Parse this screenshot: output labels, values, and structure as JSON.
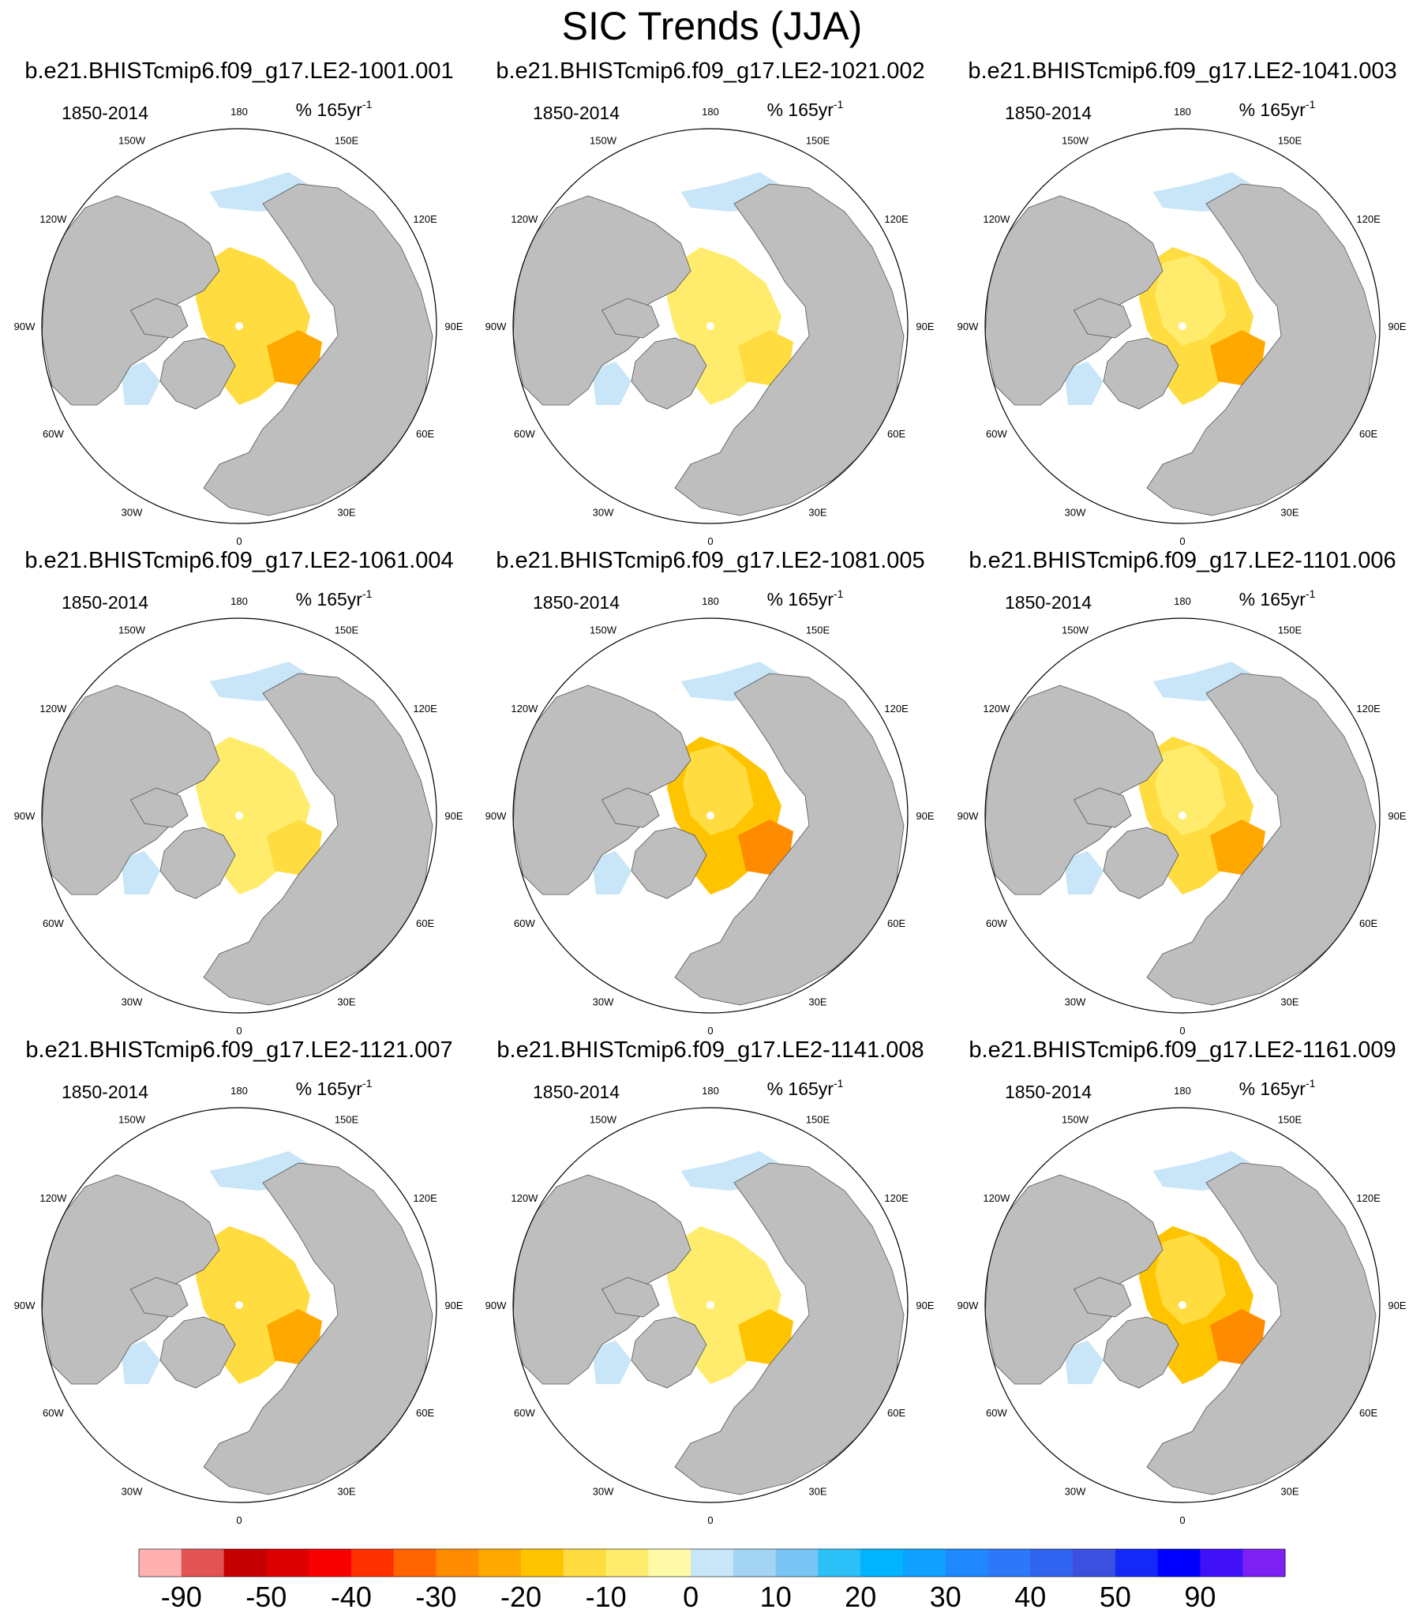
{
  "title": "SIC Trends (JJA)",
  "panel_period": "1850-2014",
  "panel_units": "% 165yr",
  "panel_units_exp": "-1",
  "lon_labels": [
    "180",
    "150E",
    "120E",
    "90E",
    "60E",
    "30E",
    "0",
    "30W",
    "60W",
    "90W",
    "120W",
    "150W"
  ],
  "colors": {
    "land": "#bebebe",
    "ocean": "#ffffff",
    "frame": "#000000"
  },
  "panels": [
    {
      "name": "b.e21.BHISTcmip6.f09_g17.LE2-1001.001",
      "intensity": 0.75
    },
    {
      "name": "b.e21.BHISTcmip6.f09_g17.LE2-1021.002",
      "intensity": 0.35
    },
    {
      "name": "b.e21.BHISTcmip6.f09_g17.LE2-1041.003",
      "intensity": 0.65
    },
    {
      "name": "b.e21.BHISTcmip6.f09_g17.LE2-1061.004",
      "intensity": 0.4
    },
    {
      "name": "b.e21.BHISTcmip6.f09_g17.LE2-1081.005",
      "intensity": 0.85
    },
    {
      "name": "b.e21.BHISTcmip6.f09_g17.LE2-1101.006",
      "intensity": 0.7
    },
    {
      "name": "b.e21.BHISTcmip6.f09_g17.LE2-1121.007",
      "intensity": 0.75
    },
    {
      "name": "b.e21.BHISTcmip6.f09_g17.LE2-1141.008",
      "intensity": 0.45
    },
    {
      "name": "b.e21.BHISTcmip6.f09_g17.LE2-1161.009",
      "intensity": 0.8
    }
  ],
  "colorbar": {
    "labels": [
      "-90",
      "-50",
      "-40",
      "-30",
      "-20",
      "-10",
      "0",
      "10",
      "20",
      "30",
      "40",
      "50",
      "90"
    ],
    "colors": [
      "#ffb0b0",
      "#e25454",
      "#c40000",
      "#dc0000",
      "#f80000",
      "#ff3000",
      "#ff6400",
      "#ff8c00",
      "#ffa800",
      "#ffc400",
      "#ffdc40",
      "#ffec6c",
      "#fffaa8",
      "#c8e6f8",
      "#a4d4f4",
      "#78c4f4",
      "#2cc0f8",
      "#00b4ff",
      "#10a0ff",
      "#2088ff",
      "#2c78f8",
      "#3064f0",
      "#3c50e0",
      "#1428f8",
      "#0000ff",
      "#4010f8",
      "#7c20f4"
    ]
  }
}
